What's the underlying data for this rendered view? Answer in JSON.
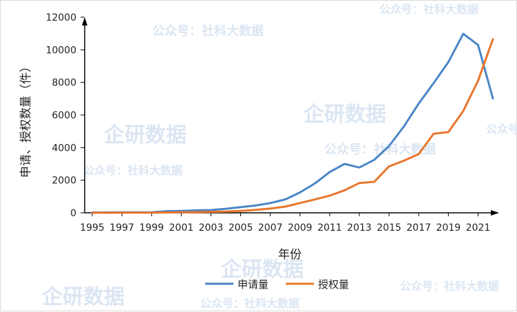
{
  "chart_data": {
    "type": "line",
    "title": "",
    "xlabel": "年份",
    "ylabel": "申请、授权数量（件）",
    "x": [
      1995,
      1996,
      1997,
      1998,
      1999,
      2000,
      2001,
      2002,
      2003,
      2004,
      2005,
      2006,
      2007,
      2008,
      2009,
      2010,
      2011,
      2012,
      2013,
      2014,
      2015,
      2016,
      2017,
      2018,
      2019,
      2020,
      2021,
      2022
    ],
    "x_tick_labels": [
      "1995",
      "1997",
      "1999",
      "2001",
      "2003",
      "2005",
      "2007",
      "2009",
      "2011",
      "2013",
      "2015",
      "2017",
      "2019",
      "2021"
    ],
    "ylim": [
      0,
      12000
    ],
    "y_ticks": [
      0,
      2000,
      4000,
      6000,
      8000,
      10000,
      12000
    ],
    "y_tick_labels": [
      "0",
      "2000",
      "4000",
      "6000",
      "8000",
      "10000",
      "12000"
    ],
    "grid": false,
    "legend_position": "bottom",
    "series": [
      {
        "name": "申请量",
        "color": "#4a86c6",
        "values": [
          20,
          25,
          30,
          30,
          30,
          100,
          120,
          150,
          170,
          250,
          350,
          450,
          600,
          820,
          1250,
          1800,
          2500,
          3000,
          2780,
          3250,
          4100,
          5300,
          6700,
          7950,
          9250,
          10980,
          10300,
          7020
        ]
      },
      {
        "name": "授权量",
        "color": "#e8762c",
        "values": [
          5,
          5,
          10,
          10,
          10,
          20,
          30,
          40,
          60,
          80,
          120,
          180,
          260,
          380,
          600,
          820,
          1050,
          1380,
          1830,
          1900,
          2850,
          3200,
          3600,
          4850,
          4950,
          6250,
          8100,
          10650
        ]
      }
    ]
  },
  "watermarks": [
    "企研数据",
    "公众号：社科大数据"
  ]
}
